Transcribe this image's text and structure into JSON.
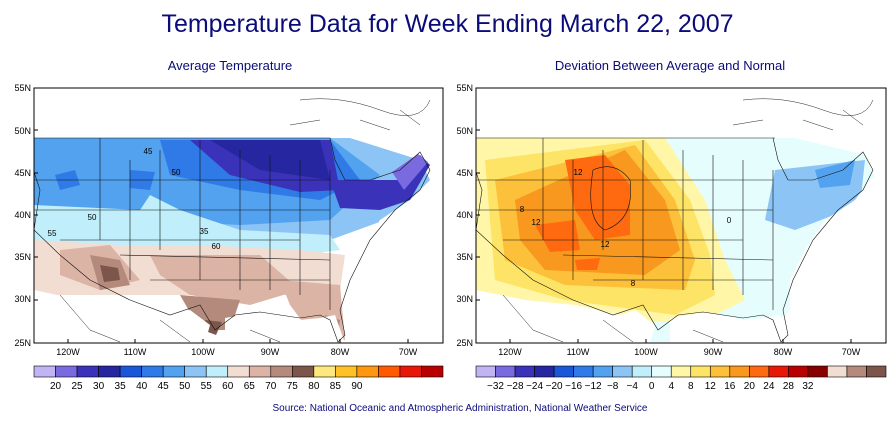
{
  "title": "Temperature Data for Week Ending March 22, 2007",
  "source": "Source:  National Oceanic and Atmospheric Administration, National Weather Service",
  "panels": [
    {
      "subtitle": "Average Temperature",
      "lat_labels": [
        "55N",
        "50N",
        "45N",
        "40N",
        "35N",
        "30N",
        "25N"
      ],
      "lon_labels": [
        "120W",
        "110W",
        "100W",
        "90W",
        "80W",
        "70W"
      ],
      "legend": {
        "colors": [
          "#c0b4f2",
          "#7a6ae0",
          "#3a32b8",
          "#2626a0",
          "#1a56d8",
          "#2f7ae6",
          "#52a2f0",
          "#8cc4f6",
          "#c0eefb",
          "#f2ddd2",
          "#dcb4a6",
          "#b48a7c",
          "#7c564a",
          "#fde880",
          "#ffc226",
          "#ff9810",
          "#ff5a00",
          "#e81808",
          "#b80000"
        ],
        "labels": [
          "20",
          "25",
          "30",
          "35",
          "40",
          "45",
          "50",
          "55",
          "60",
          "65",
          "70",
          "75",
          "80",
          "85",
          "90"
        ]
      },
      "contour_labels": [
        "45",
        "50",
        "55",
        "35",
        "50",
        "60"
      ]
    },
    {
      "subtitle": "Deviation Between Average and Normal",
      "lat_labels": [
        "55N",
        "50N",
        "45N",
        "40N",
        "35N",
        "30N",
        "25N"
      ],
      "lon_labels": [
        "120W",
        "110W",
        "100W",
        "90W",
        "80W",
        "70W"
      ],
      "legend": {
        "colors": [
          "#c0b4f2",
          "#7a6ae0",
          "#3a32b8",
          "#2626a0",
          "#1a56d8",
          "#2f7ae6",
          "#52a2f0",
          "#8cc4f6",
          "#c0eefb",
          "#e6fdfd",
          "#fff6a8",
          "#fde466",
          "#fcc03a",
          "#f8981e",
          "#ff6a10",
          "#e81808",
          "#b80000",
          "#860000",
          "#f2ddd2",
          "#b48a7c",
          "#7c564a"
        ],
        "labels": [
          "−32",
          "−28",
          "−24",
          "−20",
          "−16",
          "−12",
          "−8",
          "−4",
          "0",
          "4",
          "8",
          "12",
          "16",
          "20",
          "24",
          "28",
          "32"
        ]
      },
      "contour_labels": [
        "12",
        "8",
        "12",
        "12",
        "8",
        "0"
      ]
    }
  ]
}
